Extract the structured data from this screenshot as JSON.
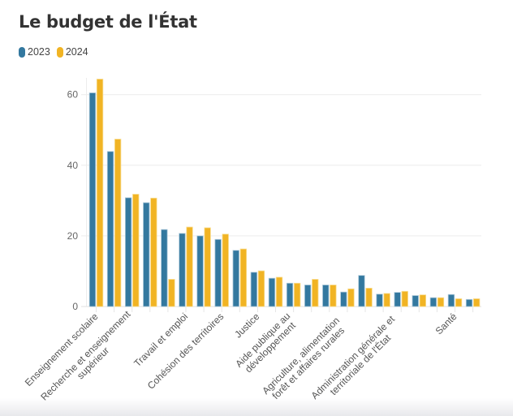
{
  "chart_data": {
    "type": "bar",
    "title": "Le budget de l'État",
    "xlabel": "",
    "ylabel": "",
    "ylim": [
      0,
      65
    ],
    "yticks": [
      0,
      20,
      40,
      60
    ],
    "grid": true,
    "legend_position": "top-left",
    "categories": [
      "Enseignement scolaire",
      "",
      "Recherche et enseignement|supérieur",
      "",
      "",
      "Travail et emploi",
      "",
      "Cohésion des territoires",
      "",
      "Justice",
      "",
      "Aide publique au|développement",
      "",
      "",
      "Agriculture, alimentation|forêt et affaires rurales",
      "",
      "",
      "Administration générale et|territoriale de l'État",
      "",
      "",
      "Santé",
      ""
    ],
    "series": [
      {
        "name": "2023",
        "color": "#33789f",
        "values": [
          60.5,
          43.9,
          30.8,
          29.4,
          21.8,
          20.7,
          20.0,
          19.0,
          15.9,
          9.7,
          8.0,
          6.6,
          6.1,
          6.1,
          4.1,
          8.8,
          3.5,
          4.0,
          3.1,
          2.5,
          3.4,
          2.0
        ]
      },
      {
        "name": "2024",
        "color": "#f1b424",
        "values": [
          64.4,
          47.4,
          31.8,
          30.7,
          7.7,
          22.5,
          22.3,
          20.5,
          16.3,
          10.1,
          8.3,
          6.6,
          7.7,
          6.1,
          5.0,
          5.2,
          3.7,
          4.3,
          3.3,
          2.5,
          2.2,
          2.2
        ]
      }
    ]
  }
}
